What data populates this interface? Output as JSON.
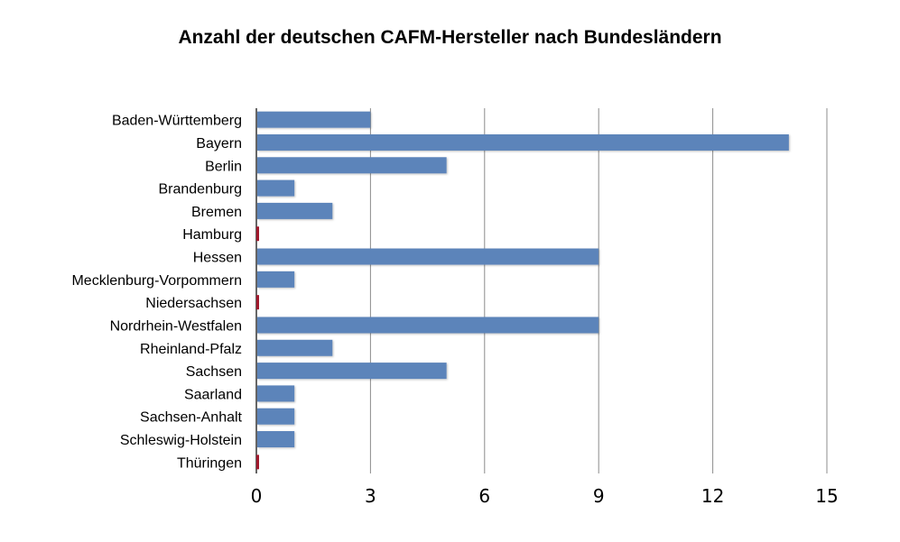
{
  "chart_data": {
    "type": "bar",
    "orientation": "horizontal",
    "title": "Anzahl der deutschen CAFM-Hersteller nach Bundesländern",
    "categories": [
      "Baden-Württemberg",
      "Bayern",
      "Berlin",
      "Brandenburg",
      "Bremen",
      "Hamburg",
      "Hessen",
      "Mecklenburg-Vorpommern",
      "Niedersachsen",
      "Nordrhein-Westfalen",
      "Rheinland-Pfalz",
      "Sachsen",
      "Saarland",
      "Sachsen-Anhalt",
      "Schleswig-Holstein",
      "Thüringen"
    ],
    "values": [
      3,
      14,
      5,
      1,
      2,
      0,
      9,
      1,
      0,
      9,
      2,
      5,
      1,
      1,
      1,
      0
    ],
    "xlim": [
      0,
      15
    ],
    "xticks": [
      0,
      3,
      6,
      9,
      12,
      15
    ],
    "grid": "vertical",
    "legend": "none",
    "colors": {
      "bar": "#5b84ba",
      "zero_marker": "#a0182c",
      "grid": "#8c8c8c"
    }
  }
}
